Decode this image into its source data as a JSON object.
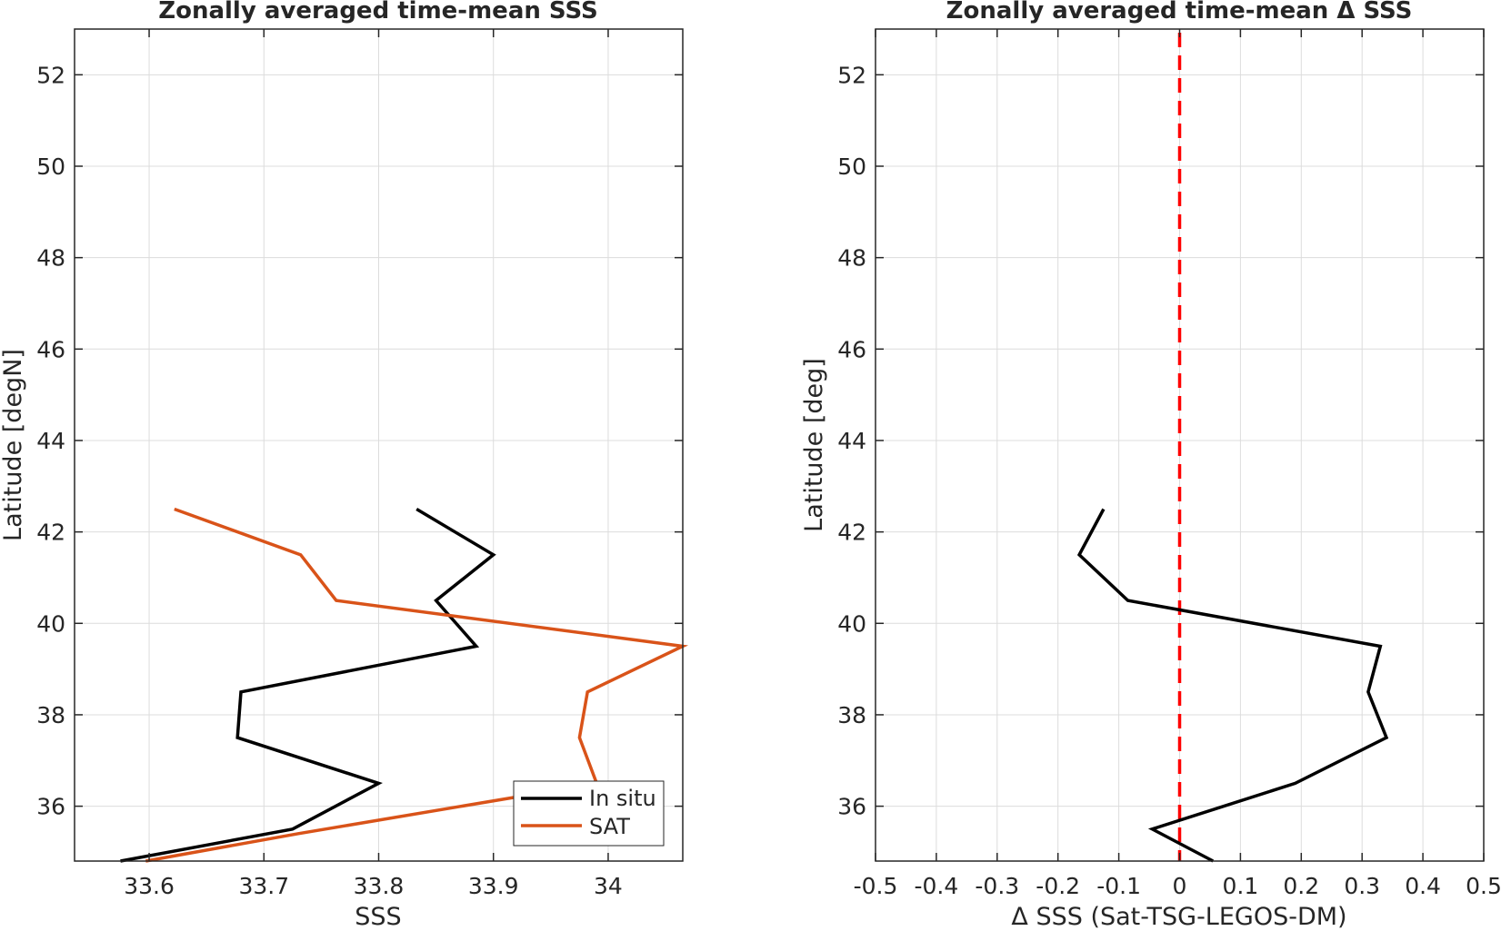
{
  "chart_data": [
    {
      "type": "line",
      "title": "Zonally averaged time-mean SSS",
      "xlabel": "SSS",
      "ylabel": "Latitude [degN]",
      "xlim": [
        33.535,
        34.065
      ],
      "ylim": [
        34.8,
        53
      ],
      "xticks": [
        33.6,
        33.7,
        33.8,
        33.9,
        34
      ],
      "xtick_labels": [
        "33.6",
        "33.7",
        "33.8",
        "33.9",
        "34"
      ],
      "yticks": [
        36,
        38,
        40,
        42,
        44,
        46,
        48,
        50,
        52
      ],
      "ytick_labels": [
        "36",
        "38",
        "40",
        "42",
        "44",
        "46",
        "48",
        "50",
        "52"
      ],
      "grid": true,
      "legend_position": "bottom-right",
      "series": [
        {
          "name": "In situ",
          "color": "#000000",
          "points": [
            [
              33.575,
              34.8
            ],
            [
              33.725,
              35.5
            ],
            [
              33.8,
              36.5
            ],
            [
              33.677,
              37.5
            ],
            [
              33.68,
              38.5
            ],
            [
              33.885,
              39.5
            ],
            [
              33.85,
              40.5
            ],
            [
              33.9,
              41.5
            ],
            [
              33.833,
              42.5
            ]
          ]
        },
        {
          "name": "SAT",
          "color": "#D95319",
          "points": [
            [
              33.597,
              34.8
            ],
            [
              33.73,
              35.4
            ],
            [
              33.92,
              36.2
            ],
            [
              33.99,
              36.5
            ],
            [
              33.975,
              37.5
            ],
            [
              33.982,
              38.5
            ],
            [
              34.065,
              39.5
            ],
            [
              33.763,
              40.5
            ],
            [
              33.732,
              41.5
            ],
            [
              33.622,
              42.5
            ]
          ]
        }
      ]
    },
    {
      "type": "line",
      "title": "Zonally averaged time-mean Δ SSS",
      "xlabel": "Δ SSS (Sat-TSG-LEGOS-DM)",
      "ylabel": "Latitude [deg]",
      "xlim": [
        -0.5,
        0.5
      ],
      "ylim": [
        34.8,
        53
      ],
      "xticks": [
        -0.5,
        -0.4,
        -0.3,
        -0.2,
        -0.1,
        0,
        0.1,
        0.2,
        0.3,
        0.4,
        0.5
      ],
      "xtick_labels": [
        "-0.5",
        "-0.4",
        "-0.3",
        "-0.2",
        "-0.1",
        "0",
        "0.1",
        "0.2",
        "0.3",
        "0.4",
        "0.5"
      ],
      "yticks": [
        36,
        38,
        40,
        42,
        44,
        46,
        48,
        50,
        52
      ],
      "ytick_labels": [
        "36",
        "38",
        "40",
        "42",
        "44",
        "46",
        "48",
        "50",
        "52"
      ],
      "grid": true,
      "reference_line": {
        "x": 0,
        "color": "#FF0000",
        "style": "dashed"
      },
      "series": [
        {
          "color": "#000000",
          "points": [
            [
              0.055,
              34.8
            ],
            [
              -0.045,
              35.5
            ],
            [
              0.19,
              36.5
            ],
            [
              0.34,
              37.5
            ],
            [
              0.31,
              38.5
            ],
            [
              0.33,
              39.5
            ],
            [
              -0.085,
              40.5
            ],
            [
              -0.165,
              41.5
            ],
            [
              -0.125,
              42.5
            ]
          ]
        }
      ]
    }
  ]
}
